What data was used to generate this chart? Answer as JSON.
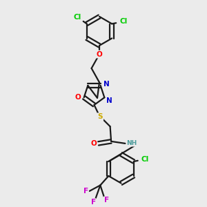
{
  "background_color": "#ebebeb",
  "bond_color": "#1a1a1a",
  "bond_width": 1.6,
  "atom_colors": {
    "C": "#1a1a1a",
    "H": "#4a9a9a",
    "O": "#ff0000",
    "N": "#0000cc",
    "S": "#ccaa00",
    "Cl": "#00cc00",
    "F": "#cc00cc"
  },
  "font_size": 7.5,
  "font_size_small": 6.5
}
